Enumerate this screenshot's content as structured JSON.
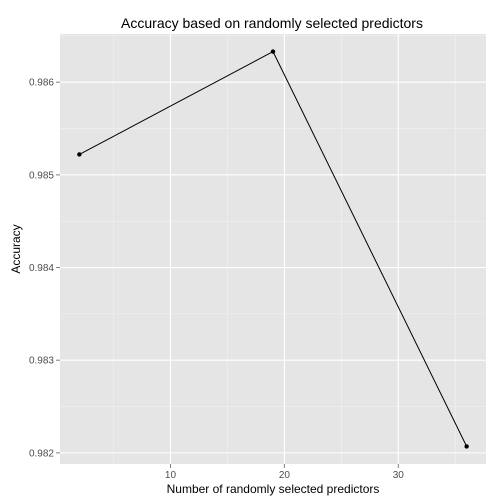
{
  "chart_data": {
    "type": "line",
    "title": "Accuracy based on randomly selected predictors",
    "xlabel": "Number of randomly selected predictors",
    "ylabel": "Accuracy",
    "x": [
      2,
      19,
      36
    ],
    "series": [
      {
        "values": [
          0.98522,
          0.98633,
          0.98207
        ]
      }
    ],
    "xlim": [
      0.3,
      37.7
    ],
    "ylim": [
      0.98188,
      0.98652
    ],
    "x_ticks": [
      10,
      20,
      30
    ],
    "x_tick_labels": [
      "10",
      "20",
      "30"
    ],
    "y_ticks": [
      0.982,
      0.983,
      0.984,
      0.985,
      0.986
    ],
    "y_tick_labels": [
      "0.982",
      "0.983",
      "0.984",
      "0.985",
      "0.986"
    ],
    "grid": true,
    "legend": "none",
    "colors": {
      "panel_background": "#e5e5e5",
      "grid_major": "#ffffff",
      "grid_minor": "#f2f2f2",
      "line": "#000000",
      "point": "#000000",
      "tick_text": "#4d4d4d"
    }
  }
}
